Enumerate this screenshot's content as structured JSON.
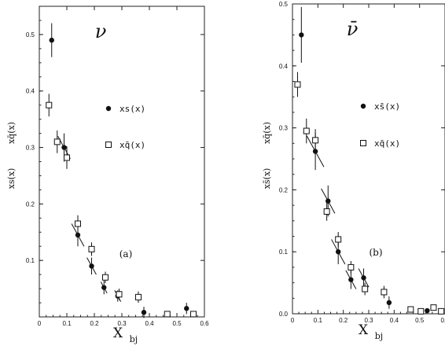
{
  "chart_data": [
    {
      "type": "scatter",
      "panel_label": "(a)",
      "process_symbol": "ν",
      "ylabel_main": "xs(x)",
      "ylabel_over": "xq̄(x)",
      "xlabel_main": "X",
      "xlabel_sub": "bj",
      "xlim": [
        0,
        0.6
      ],
      "ylim": [
        0,
        0.55
      ],
      "xticks": [
        "0",
        "0.1",
        "0.2",
        "0.3",
        "0.4",
        "0.5",
        "0.6"
      ],
      "xtick_values": [
        0,
        0.1,
        0.2,
        0.3,
        0.4,
        0.5,
        0.6
      ],
      "yticks": [
        "0.1",
        "0.2",
        "0.3",
        "0.4",
        "0.5"
      ],
      "ytick_values": [
        0.1,
        0.2,
        0.3,
        0.4,
        0.5
      ],
      "legend": [
        {
          "marker": "filled-circle",
          "label": "xs(x)"
        },
        {
          "marker": "open-square",
          "label": "xq̄(x)"
        }
      ],
      "series": [
        {
          "name": "xs(x)",
          "marker": "filled-circle",
          "points": [
            {
              "x": 0.045,
              "y": 0.49,
              "err": 0.03,
              "tilt": 0
            },
            {
              "x": 0.09,
              "y": 0.3,
              "err": 0.025,
              "tilt": 0.02
            },
            {
              "x": 0.14,
              "y": 0.145,
              "err": 0.02,
              "tilt": 0.02
            },
            {
              "x": 0.19,
              "y": 0.09,
              "err": 0.015,
              "tilt": 0.015
            },
            {
              "x": 0.235,
              "y": 0.052,
              "err": 0.012,
              "tilt": 0.01
            },
            {
              "x": 0.285,
              "y": 0.037,
              "err": 0.01,
              "tilt": 0.01
            },
            {
              "x": 0.38,
              "y": 0.008,
              "err": 0.01,
              "tilt": 0
            },
            {
              "x": 0.535,
              "y": 0.015,
              "err": 0.01,
              "tilt": 0
            }
          ]
        },
        {
          "name": "xq̄(x)",
          "marker": "open-square",
          "points": [
            {
              "x": 0.035,
              "y": 0.375,
              "err": 0.02
            },
            {
              "x": 0.065,
              "y": 0.31,
              "err": 0.02
            },
            {
              "x": 0.1,
              "y": 0.282,
              "err": 0.02
            },
            {
              "x": 0.14,
              "y": 0.165,
              "err": 0.015
            },
            {
              "x": 0.19,
              "y": 0.12,
              "err": 0.012
            },
            {
              "x": 0.24,
              "y": 0.07,
              "err": 0.01
            },
            {
              "x": 0.29,
              "y": 0.04,
              "err": 0.01
            },
            {
              "x": 0.36,
              "y": 0.035,
              "err": 0.01
            },
            {
              "x": 0.465,
              "y": 0.005,
              "err": 0.004
            },
            {
              "x": 0.56,
              "y": 0.005,
              "err": 0.004
            }
          ]
        }
      ]
    },
    {
      "type": "scatter",
      "panel_label": "(b)",
      "process_symbol": "ν̄",
      "ylabel_main": "xs̄(x)",
      "ylabel_over": "xq̄(x)",
      "xlabel_main": "X",
      "xlabel_sub": "bj",
      "xlim": [
        0,
        0.6
      ],
      "ylim": [
        0,
        0.5
      ],
      "xticks": [
        "0",
        "0.1",
        "0.2",
        "0.3",
        "0.4",
        "0.5",
        "0.6"
      ],
      "xtick_values": [
        0,
        0.1,
        0.2,
        0.3,
        0.4,
        0.5,
        0.6
      ],
      "yticks": [
        "0.0",
        "0.1",
        "0.2",
        "0.3",
        "0.4",
        "0.5"
      ],
      "ytick_values": [
        0,
        0.1,
        0.2,
        0.3,
        0.4,
        0.5
      ],
      "legend": [
        {
          "marker": "filled-circle",
          "label": "xs̄(x)"
        },
        {
          "marker": "open-square",
          "label": "xq̄(x)"
        }
      ],
      "series": [
        {
          "name": "xs̄(x)",
          "marker": "filled-circle",
          "points": [
            {
              "x": 0.035,
              "y": 0.45,
              "err": 0.045,
              "tilt": 0
            },
            {
              "x": 0.09,
              "y": 0.262,
              "err": 0.03,
              "tilt": 0.025
            },
            {
              "x": 0.14,
              "y": 0.182,
              "err": 0.025,
              "tilt": 0.02
            },
            {
              "x": 0.18,
              "y": 0.1,
              "err": 0.02,
              "tilt": 0.02
            },
            {
              "x": 0.23,
              "y": 0.055,
              "err": 0.015,
              "tilt": 0.015
            },
            {
              "x": 0.28,
              "y": 0.058,
              "err": 0.015,
              "tilt": 0.015
            },
            {
              "x": 0.38,
              "y": 0.018,
              "err": 0.01,
              "tilt": 0
            },
            {
              "x": 0.53,
              "y": 0.005,
              "err": 0.004,
              "tilt": 0
            }
          ]
        },
        {
          "name": "xq̄(x)",
          "marker": "open-square",
          "points": [
            {
              "x": 0.02,
              "y": 0.37,
              "err": 0.02
            },
            {
              "x": 0.055,
              "y": 0.295,
              "err": 0.02
            },
            {
              "x": 0.09,
              "y": 0.28,
              "err": 0.018
            },
            {
              "x": 0.135,
              "y": 0.165,
              "err": 0.015
            },
            {
              "x": 0.18,
              "y": 0.12,
              "err": 0.012
            },
            {
              "x": 0.23,
              "y": 0.075,
              "err": 0.01
            },
            {
              "x": 0.285,
              "y": 0.04,
              "err": 0.01
            },
            {
              "x": 0.36,
              "y": 0.035,
              "err": 0.01
            },
            {
              "x": 0.465,
              "y": 0.007,
              "err": 0.004
            },
            {
              "x": 0.505,
              "y": 0.004,
              "err": 0.003
            },
            {
              "x": 0.555,
              "y": 0.01,
              "err": 0.004
            },
            {
              "x": 0.585,
              "y": 0.004,
              "err": 0.003
            }
          ]
        }
      ]
    }
  ]
}
